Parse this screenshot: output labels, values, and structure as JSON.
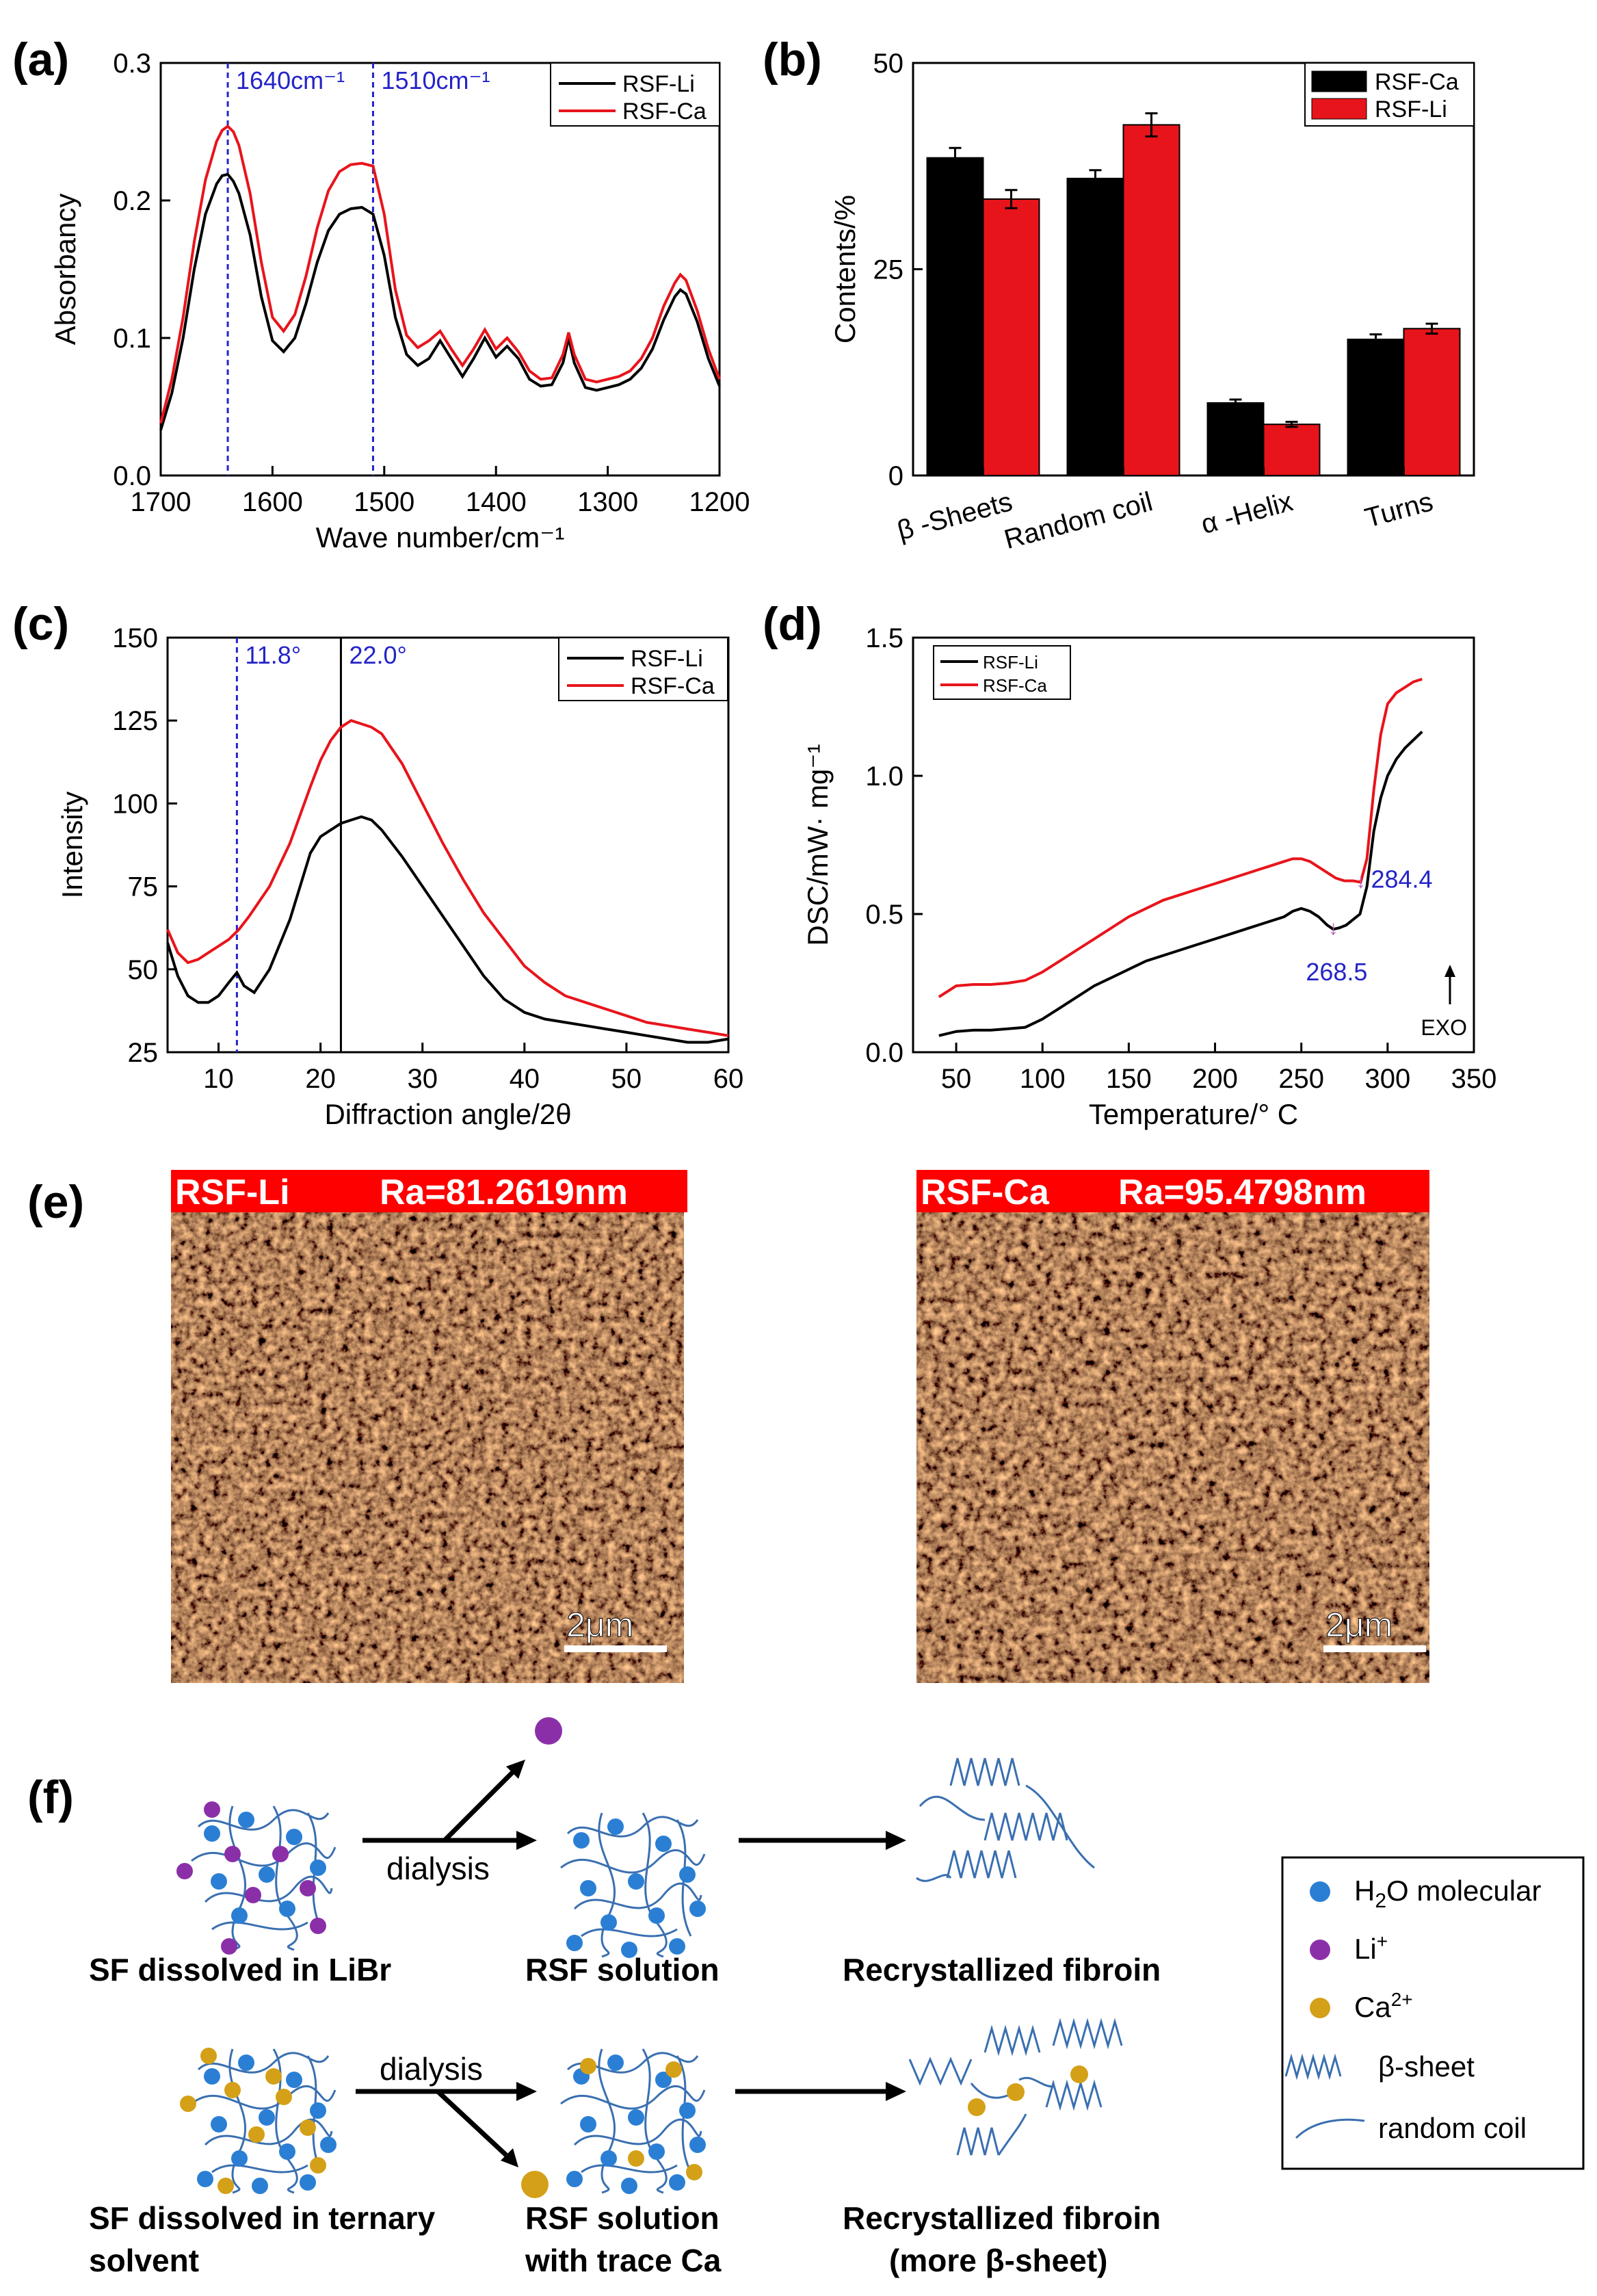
{
  "panels": {
    "a": "(a)",
    "b": "(b)",
    "c": "(c)",
    "d": "(d)",
    "e": "(e)",
    "f": "(f)"
  },
  "colors": {
    "black": "#000000",
    "red": "#e8141b",
    "blue": "#2424c8",
    "afm_dark": "#7a3a10",
    "afm_mid": "#c8743a",
    "afm_light": "#f1c79c",
    "afm_label": "#ff0000",
    "fibre": "#3a6fb0",
    "water": "#2a7fd4",
    "li": "#8b2fa8",
    "ca": "#d4a017"
  },
  "chart_data": [
    {
      "id": "a",
      "type": "line",
      "xlabel": "Wave number/cm⁻¹",
      "ylabel": "Absorbancy",
      "xlim": [
        1700,
        1200
      ],
      "ylim": [
        0,
        0.3
      ],
      "xticks": [
        1700,
        1600,
        1500,
        1400,
        1300,
        1200
      ],
      "xtick_labels": [
        "1700",
        "1600",
        "1500",
        "1400",
        "1300",
        "1200"
      ],
      "yticks": [
        0,
        0.1,
        0.2,
        0.3
      ],
      "ytick_labels": [
        "0.0",
        "0.1",
        "0.2",
        "0.3"
      ],
      "legend": [
        "RSF-Li",
        "RSF-Ca"
      ],
      "vlines": [
        {
          "x": 1640,
          "label": "1640cm⁻¹"
        },
        {
          "x": 1510,
          "label": "1510cm⁻¹"
        }
      ],
      "series": [
        {
          "name": "RSF-Li",
          "color": "#000000",
          "x": [
            1700,
            1690,
            1680,
            1670,
            1660,
            1650,
            1645,
            1640,
            1635,
            1630,
            1620,
            1610,
            1600,
            1590,
            1580,
            1570,
            1560,
            1550,
            1540,
            1530,
            1520,
            1510,
            1500,
            1490,
            1480,
            1470,
            1460,
            1450,
            1440,
            1430,
            1420,
            1410,
            1400,
            1390,
            1380,
            1370,
            1360,
            1350,
            1340,
            1335,
            1330,
            1320,
            1310,
            1300,
            1290,
            1280,
            1270,
            1260,
            1250,
            1240,
            1235,
            1230,
            1220,
            1210,
            1200
          ],
          "y": [
            0.033,
            0.06,
            0.1,
            0.15,
            0.19,
            0.212,
            0.218,
            0.219,
            0.214,
            0.205,
            0.175,
            0.13,
            0.098,
            0.09,
            0.1,
            0.125,
            0.155,
            0.178,
            0.19,
            0.194,
            0.195,
            0.19,
            0.16,
            0.115,
            0.088,
            0.08,
            0.085,
            0.098,
            0.085,
            0.072,
            0.085,
            0.1,
            0.086,
            0.094,
            0.085,
            0.07,
            0.065,
            0.066,
            0.082,
            0.1,
            0.082,
            0.064,
            0.062,
            0.064,
            0.066,
            0.07,
            0.078,
            0.092,
            0.113,
            0.13,
            0.135,
            0.132,
            0.112,
            0.085,
            0.065
          ]
        },
        {
          "name": "RSF-Ca",
          "color": "#e8141b",
          "x": [
            1700,
            1690,
            1680,
            1670,
            1660,
            1650,
            1645,
            1640,
            1635,
            1630,
            1620,
            1610,
            1600,
            1590,
            1580,
            1570,
            1560,
            1550,
            1540,
            1530,
            1520,
            1510,
            1500,
            1490,
            1480,
            1470,
            1460,
            1450,
            1440,
            1430,
            1420,
            1410,
            1400,
            1390,
            1380,
            1370,
            1360,
            1350,
            1340,
            1335,
            1330,
            1320,
            1310,
            1300,
            1290,
            1280,
            1270,
            1260,
            1250,
            1240,
            1235,
            1230,
            1220,
            1210,
            1200
          ],
          "y": [
            0.038,
            0.07,
            0.115,
            0.17,
            0.215,
            0.243,
            0.251,
            0.254,
            0.25,
            0.24,
            0.205,
            0.155,
            0.115,
            0.105,
            0.117,
            0.145,
            0.18,
            0.207,
            0.221,
            0.226,
            0.227,
            0.225,
            0.19,
            0.135,
            0.102,
            0.093,
            0.098,
            0.105,
            0.092,
            0.08,
            0.092,
            0.106,
            0.092,
            0.1,
            0.09,
            0.076,
            0.07,
            0.071,
            0.088,
            0.104,
            0.088,
            0.07,
            0.068,
            0.07,
            0.072,
            0.076,
            0.085,
            0.1,
            0.123,
            0.14,
            0.146,
            0.142,
            0.12,
            0.092,
            0.07
          ]
        }
      ]
    },
    {
      "id": "b",
      "type": "bar",
      "ylabel": "Contents/%",
      "ylim": [
        0,
        50
      ],
      "yticks": [
        0,
        25,
        50
      ],
      "ytick_labels": [
        "0",
        "25",
        "50"
      ],
      "categories": [
        "β -Sheets",
        "Random coil",
        "α -Helix",
        "Turns"
      ],
      "legend": [
        "RSF-Ca",
        "RSF-Li"
      ],
      "series": [
        {
          "name": "RSF-Ca",
          "color": "#000000",
          "values": [
            38.5,
            36.0,
            8.8,
            16.5
          ],
          "errors": [
            1.2,
            1.0,
            0.4,
            0.6
          ]
        },
        {
          "name": "RSF-Li",
          "color": "#e8141b",
          "values": [
            33.5,
            42.5,
            6.2,
            17.8
          ],
          "errors": [
            1.1,
            1.4,
            0.3,
            0.6
          ]
        }
      ]
    },
    {
      "id": "c",
      "type": "line",
      "xlabel": "Diffraction angle/2θ",
      "ylabel": "Intensity",
      "xlim": [
        5,
        60
      ],
      "ylim": [
        25,
        150
      ],
      "xticks": [
        10,
        20,
        30,
        40,
        50,
        60
      ],
      "xtick_labels": [
        "10",
        "20",
        "30",
        "40",
        "50",
        "60"
      ],
      "yticks": [
        25,
        50,
        75,
        100,
        125,
        150
      ],
      "ytick_labels": [
        "25",
        "50",
        "75",
        "100",
        "125",
        "150"
      ],
      "legend": [
        "RSF-Li",
        "RSF-Ca"
      ],
      "vlines": [
        {
          "x": 11.8,
          "label": "11.8°",
          "style": "dashed"
        },
        {
          "x": 22.0,
          "label": "22.0°",
          "style": "solid"
        }
      ],
      "series": [
        {
          "name": "RSF-Li",
          "color": "#000000",
          "x": [
            5,
            6,
            7,
            8,
            9,
            10,
            11,
            11.8,
            12.5,
            13.5,
            15,
            17,
            19,
            20,
            21,
            22,
            23,
            24,
            25,
            26,
            28,
            30,
            32,
            34,
            36,
            38,
            40,
            42,
            44,
            46,
            48,
            50,
            52,
            54,
            56,
            58,
            60
          ],
          "y": [
            58,
            48,
            42,
            40,
            40,
            42,
            46,
            49,
            45,
            43,
            50,
            65,
            85,
            90,
            92,
            94,
            95,
            96,
            95,
            92,
            84,
            75,
            66,
            57,
            48,
            41,
            37,
            35,
            34,
            33,
            32,
            31,
            30,
            29,
            28,
            28,
            29
          ]
        },
        {
          "name": "RSF-Ca",
          "color": "#e8141b",
          "x": [
            5,
            6,
            7,
            8,
            9,
            10,
            11,
            12,
            13,
            15,
            17,
            19,
            20,
            21,
            22,
            23,
            24,
            25,
            26,
            28,
            30,
            32,
            34,
            36,
            38,
            40,
            42,
            44,
            46,
            48,
            50,
            52,
            54,
            56,
            58,
            60
          ],
          "y": [
            62,
            55,
            52,
            53,
            55,
            57,
            59,
            62,
            66,
            75,
            88,
            105,
            113,
            119,
            123,
            125,
            124,
            123,
            121,
            112,
            100,
            88,
            77,
            67,
            59,
            51,
            46,
            42,
            40,
            38,
            36,
            34,
            33,
            32,
            31,
            30
          ]
        }
      ]
    },
    {
      "id": "d",
      "type": "line",
      "xlabel": "Temperature/° C",
      "ylabel": "DSC/mW· mg⁻¹",
      "xlim": [
        25,
        350
      ],
      "ylim": [
        0,
        1.5
      ],
      "xticks": [
        50,
        100,
        150,
        200,
        250,
        300,
        350
      ],
      "xtick_labels": [
        "50",
        "100",
        "150",
        "200",
        "250",
        "300",
        "350"
      ],
      "yticks": [
        0,
        0.5,
        1.0,
        1.5
      ],
      "ytick_labels": [
        "0.0",
        "0.5",
        "1.0",
        "1.5"
      ],
      "legend": [
        "RSF-Li",
        "RSF-Ca"
      ],
      "annotations": [
        {
          "x": 268.5,
          "y": 0.445,
          "label": "268.5"
        },
        {
          "x": 284.4,
          "y": 0.615,
          "label": "284.4"
        }
      ],
      "exo_label": "EXO",
      "series": [
        {
          "name": "RSF-Li",
          "color": "#000000",
          "x": [
            40,
            50,
            60,
            70,
            80,
            90,
            100,
            110,
            120,
            130,
            140,
            150,
            160,
            170,
            180,
            190,
            200,
            210,
            220,
            230,
            240,
            245,
            250,
            255,
            260,
            265,
            268.5,
            272,
            276,
            280,
            284,
            288,
            292,
            296,
            300,
            305,
            310,
            315,
            320
          ],
          "y": [
            0.06,
            0.075,
            0.08,
            0.08,
            0.085,
            0.09,
            0.12,
            0.16,
            0.2,
            0.24,
            0.27,
            0.3,
            0.33,
            0.35,
            0.37,
            0.39,
            0.41,
            0.43,
            0.45,
            0.47,
            0.49,
            0.51,
            0.52,
            0.51,
            0.49,
            0.46,
            0.445,
            0.45,
            0.46,
            0.48,
            0.5,
            0.6,
            0.8,
            0.92,
            1.0,
            1.06,
            1.1,
            1.13,
            1.16
          ]
        },
        {
          "name": "RSF-Ca",
          "color": "#e8141b",
          "x": [
            40,
            50,
            60,
            70,
            80,
            90,
            100,
            110,
            120,
            130,
            140,
            150,
            160,
            170,
            180,
            190,
            200,
            210,
            220,
            230,
            240,
            245,
            250,
            255,
            260,
            265,
            270,
            275,
            280,
            284.4,
            288,
            292,
            296,
            300,
            305,
            310,
            315,
            320
          ],
          "y": [
            0.2,
            0.24,
            0.245,
            0.245,
            0.25,
            0.26,
            0.29,
            0.33,
            0.37,
            0.41,
            0.45,
            0.49,
            0.52,
            0.55,
            0.57,
            0.59,
            0.61,
            0.63,
            0.65,
            0.67,
            0.69,
            0.7,
            0.7,
            0.69,
            0.67,
            0.65,
            0.63,
            0.62,
            0.62,
            0.615,
            0.7,
            0.95,
            1.15,
            1.26,
            1.3,
            1.32,
            1.34,
            1.35
          ]
        }
      ]
    }
  ],
  "afm": [
    {
      "sample": "RSF-Li",
      "ra": "Ra=81.2619nm",
      "scale": "2μm"
    },
    {
      "sample": "RSF-Ca",
      "ra": "Ra=95.4798nm",
      "scale": "2μm"
    }
  ],
  "scheme": {
    "row1": {
      "left": "SF dissolved in LiBr",
      "arrow": "dialysis",
      "mid": "RSF solution",
      "right": "Recrystallized fibroin"
    },
    "row2": {
      "left1": "SF dissolved in ternary",
      "left2": "solvent",
      "arrow": "dialysis",
      "mid1": "RSF solution",
      "mid2": "with trace Ca",
      "right1": "Recrystallized fibroin",
      "right2": "(more β-sheet)"
    },
    "legend": {
      "water_main": "H",
      "water_sub": "2",
      "water_rest": "O molecular",
      "li": "Li",
      "li_sup": "+",
      "ca": "Ca",
      "ca_sup": "2+",
      "beta": "β-sheet",
      "coil": "random coil"
    }
  }
}
